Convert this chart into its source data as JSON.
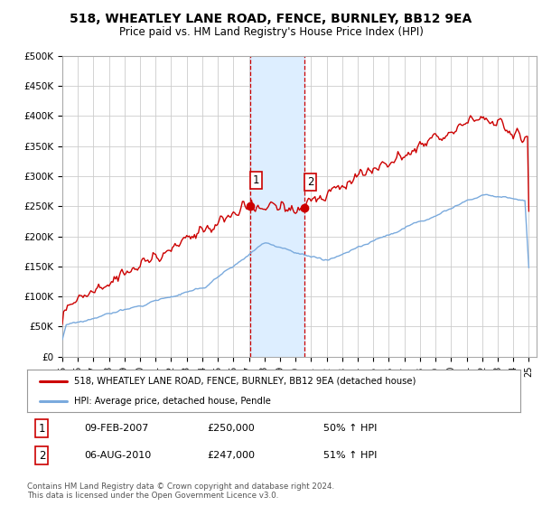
{
  "title": "518, WHEATLEY LANE ROAD, FENCE, BURNLEY, BB12 9EA",
  "subtitle": "Price paid vs. HM Land Registry's House Price Index (HPI)",
  "ylabel_ticks": [
    "£0",
    "£50K",
    "£100K",
    "£150K",
    "£200K",
    "£250K",
    "£300K",
    "£350K",
    "£400K",
    "£450K",
    "£500K"
  ],
  "ylim": [
    0,
    500000
  ],
  "xlim_start": 1995.0,
  "xlim_end": 2025.5,
  "sale1_x": 2007.08,
  "sale1_y": 250000,
  "sale2_x": 2010.58,
  "sale2_y": 247000,
  "shade_x1": 2007.08,
  "shade_x2": 2010.58,
  "legend_line1": "518, WHEATLEY LANE ROAD, FENCE, BURNLEY, BB12 9EA (detached house)",
  "legend_line2": "HPI: Average price, detached house, Pendle",
  "table_row1": [
    "1",
    "09-FEB-2007",
    "£250,000",
    "50% ↑ HPI"
  ],
  "table_row2": [
    "2",
    "06-AUG-2010",
    "£247,000",
    "51% ↑ HPI"
  ],
  "copyright_text": "Contains HM Land Registry data © Crown copyright and database right 2024.\nThis data is licensed under the Open Government Licence v3.0.",
  "line_color_red": "#cc0000",
  "line_color_blue": "#7aaadd",
  "shade_color": "#ddeeff",
  "shade_border": "#cc0000",
  "background_color": "#ffffff",
  "grid_color": "#cccccc"
}
